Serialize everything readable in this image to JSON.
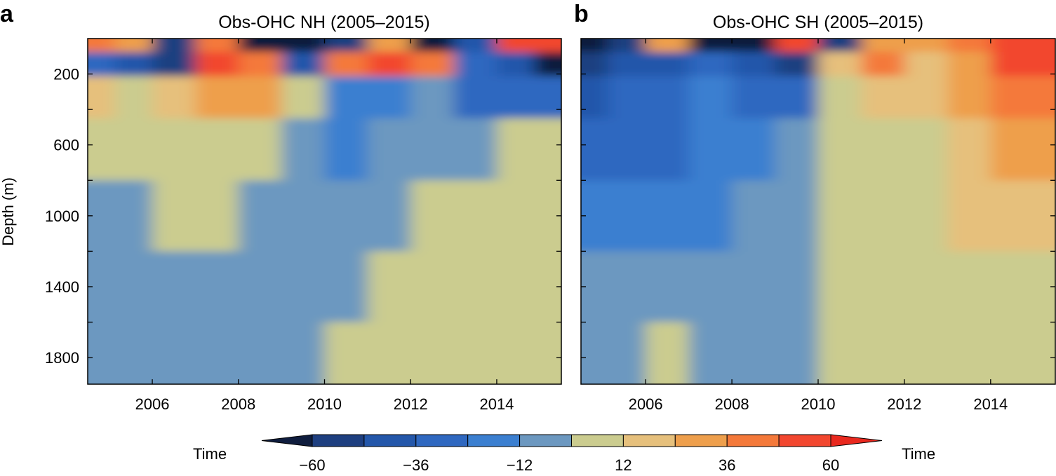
{
  "figure": {
    "panel_a_label": "a",
    "panel_b_label": "b",
    "ylabel": "Depth (m)",
    "colorbar": {
      "left_label": "Time",
      "right_label": "Time",
      "levels": [
        -60,
        -48,
        -36,
        -24,
        -12,
        0,
        12,
        24,
        36,
        48,
        60
      ],
      "tick_labels": [
        "−60",
        "−36",
        "−12",
        "12",
        "36",
        "60"
      ],
      "tick_values": [
        -60,
        -36,
        -12,
        12,
        36,
        60
      ],
      "colors": [
        "#0f1d3e",
        "#1e3f80",
        "#2457aa",
        "#2f68c0",
        "#3b7fd0",
        "#6c98c0",
        "#cbcc8f",
        "#e6c07c",
        "#ee9f4c",
        "#f4793a",
        "#f2472f",
        "#e9291f"
      ],
      "extend": "both"
    }
  },
  "chart_data": [
    {
      "type": "heatmap",
      "panel": "a",
      "title": "Obs-OHC NH (2005–2015)",
      "xlabel": "",
      "ylabel": "Depth (m)",
      "xlim": [
        2004.5,
        2015.5
      ],
      "ylim": [
        1950,
        0
      ],
      "x_ticks": [
        2006,
        2008,
        2010,
        2012,
        2014
      ],
      "x_tick_labels": [
        "2006",
        "2008",
        "2010",
        "2012",
        "2014"
      ],
      "y_ticks": [
        200,
        600,
        1000,
        1400,
        1800
      ],
      "y_tick_labels": [
        "200",
        "600",
        "1000",
        "1400",
        "1800"
      ],
      "y_minor_ticks": [
        400,
        800,
        1200,
        1600
      ],
      "x_columns": [
        2004.75,
        2005.5,
        2006.5,
        2007.5,
        2008.5,
        2009.5,
        2010.5,
        2011.5,
        2012.5,
        2013.5,
        2014.5,
        2015.25
      ],
      "depths": [
        25,
        125,
        300,
        600,
        1000,
        1400,
        1800
      ],
      "values": [
        [
          48,
          30,
          -55,
          40,
          -60,
          -60,
          -55,
          35,
          -60,
          -40,
          55,
          58
        ],
        [
          -30,
          -40,
          -55,
          60,
          48,
          -40,
          45,
          50,
          45,
          -25,
          -45,
          -60
        ],
        [
          24,
          12,
          20,
          28,
          30,
          10,
          -18,
          -12,
          -6,
          -24,
          -28,
          -24
        ],
        [
          12,
          6,
          10,
          12,
          10,
          -8,
          -20,
          -10,
          -6,
          -6,
          6,
          8
        ],
        [
          -8,
          -8,
          10,
          6,
          -8,
          -8,
          -8,
          -8,
          6,
          8,
          8,
          8
        ],
        [
          -8,
          -8,
          -8,
          -8,
          -8,
          -8,
          -8,
          8,
          8,
          8,
          8,
          8
        ],
        [
          -8,
          -8,
          -8,
          -8,
          -8,
          -8,
          8,
          8,
          8,
          8,
          8,
          8
        ]
      ]
    },
    {
      "type": "heatmap",
      "panel": "b",
      "title": "Obs-OHC SH (2005–2015)",
      "xlabel": "",
      "ylabel": "",
      "xlim": [
        2004.5,
        2015.5
      ],
      "ylim": [
        1950,
        0
      ],
      "x_ticks": [
        2006,
        2008,
        2010,
        2012,
        2014
      ],
      "x_tick_labels": [
        "2006",
        "2008",
        "2010",
        "2012",
        "2014"
      ],
      "y_ticks": [
        200,
        600,
        1000,
        1400,
        1800
      ],
      "y_minor_ticks": [
        400,
        800,
        1200,
        1600
      ],
      "x_columns": [
        2004.75,
        2005.5,
        2006.5,
        2007.5,
        2008.5,
        2009.5,
        2010.5,
        2011.5,
        2012.5,
        2013.5,
        2014.5,
        2015.25
      ],
      "depths": [
        25,
        125,
        300,
        600,
        1000,
        1400,
        1800
      ],
      "values": [
        [
          -60,
          -55,
          35,
          -60,
          -60,
          50,
          -55,
          35,
          30,
          40,
          60,
          60
        ],
        [
          -55,
          -40,
          -36,
          -30,
          -40,
          -55,
          24,
          48,
          24,
          36,
          58,
          50
        ],
        [
          -36,
          -30,
          -24,
          -18,
          -24,
          -24,
          12,
          24,
          18,
          30,
          42,
          40
        ],
        [
          -24,
          -24,
          -24,
          -18,
          -12,
          -10,
          8,
          10,
          12,
          24,
          30,
          30
        ],
        [
          -18,
          -18,
          -18,
          -18,
          -10,
          -8,
          8,
          8,
          12,
          18,
          24,
          24
        ],
        [
          -8,
          -8,
          -8,
          -8,
          -8,
          -8,
          8,
          8,
          8,
          8,
          12,
          12
        ],
        [
          -8,
          -8,
          8,
          -8,
          -8,
          -8,
          8,
          8,
          8,
          8,
          8,
          8
        ]
      ]
    }
  ]
}
